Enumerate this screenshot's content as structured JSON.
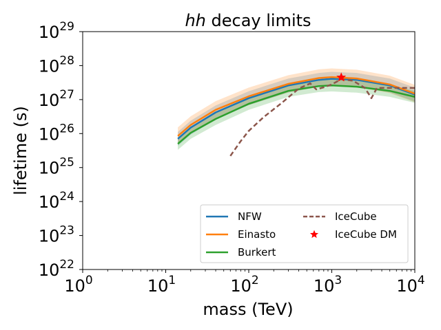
{
  "chart_data": {
    "type": "line",
    "title": "hh decay limits",
    "title_italic_part": "hh",
    "title_rest": " decay limits",
    "xlabel": "mass (TeV)",
    "ylabel": "lifetime (s)",
    "xscale": "log",
    "yscale": "log",
    "xlim": [
      1,
      10000
    ],
    "ylim": [
      1e+22,
      1e+29
    ],
    "x_ticks": [
      {
        "base": "10",
        "exp": "0",
        "value": 1
      },
      {
        "base": "10",
        "exp": "1",
        "value": 10
      },
      {
        "base": "10",
        "exp": "2",
        "value": 100
      },
      {
        "base": "10",
        "exp": "3",
        "value": 1000
      },
      {
        "base": "10",
        "exp": "4",
        "value": 10000
      }
    ],
    "y_ticks": [
      {
        "base": "10",
        "exp": "22",
        "value": 1e+22
      },
      {
        "base": "10",
        "exp": "23",
        "value": 1e+23
      },
      {
        "base": "10",
        "exp": "24",
        "value": 1e+24
      },
      {
        "base": "10",
        "exp": "25",
        "value": 1e+25
      },
      {
        "base": "10",
        "exp": "26",
        "value": 1e+26
      },
      {
        "base": "10",
        "exp": "27",
        "value": 1e+27
      },
      {
        "base": "10",
        "exp": "28",
        "value": 1e+28
      },
      {
        "base": "10",
        "exp": "29",
        "value": 1e+29
      }
    ],
    "grid": false,
    "legend_position": "bottom-right",
    "series": [
      {
        "name": "NFW",
        "color": "#1f77b4",
        "style": "solid",
        "band_factor": 1.6,
        "x": [
          14,
          20,
          40,
          100,
          300,
          700,
          1000,
          2000,
          5000,
          10000
        ],
        "y": [
          7e+25,
          1.5e+26,
          4.2e+26,
          1.1e+27,
          2.6e+27,
          3.8e+27,
          4.1e+27,
          3.8e+27,
          2.6e+27,
          1.4e+27
        ]
      },
      {
        "name": "Einasto",
        "color": "#ff7f0e",
        "style": "solid",
        "band_factor": 1.8,
        "x": [
          14,
          20,
          40,
          100,
          300,
          700,
          1000,
          2000,
          5000,
          10000
        ],
        "y": [
          8.5e+25,
          1.8e+26,
          5e+26,
          1.25e+27,
          2.9e+27,
          4.3e+27,
          4.6e+27,
          4.2e+27,
          2.8e+27,
          1.5e+27
        ]
      },
      {
        "name": "Burkert",
        "color": "#2ca02c",
        "style": "solid",
        "band_factor": 1.5,
        "x": [
          14,
          20,
          40,
          100,
          300,
          700,
          1000,
          2000,
          5000,
          10000
        ],
        "y": [
          5e+25,
          1.05e+26,
          2.7e+26,
          7.5e+26,
          1.8e+27,
          2.5e+27,
          2.6e+27,
          2.4e+27,
          1.8e+27,
          1.2e+27
        ]
      },
      {
        "name": "IceCube",
        "color": "#8c564b",
        "style": "dashed",
        "x": [
          60,
          80,
          100,
          150,
          250,
          400,
          550,
          650,
          800,
          1000,
          1300,
          1800,
          2500,
          3000,
          3500,
          4500,
          6000,
          8000,
          10000
        ],
        "y": [
          2.2e+25,
          6e+25,
          1.2e+26,
          3e+26,
          8e+26,
          2.1e+27,
          3e+27,
          2e+27,
          2.3e+27,
          2.8e+27,
          4e+27,
          3.6e+27,
          2.2e+27,
          1.1e+27,
          2.2e+27,
          2.2e+27,
          2.2e+27,
          2.2e+27,
          2.2e+27
        ]
      }
    ],
    "markers": [
      {
        "name": "IceCube DM",
        "color": "#ff0000",
        "shape": "star",
        "x": 1300,
        "y": 4.5e+27
      }
    ]
  }
}
